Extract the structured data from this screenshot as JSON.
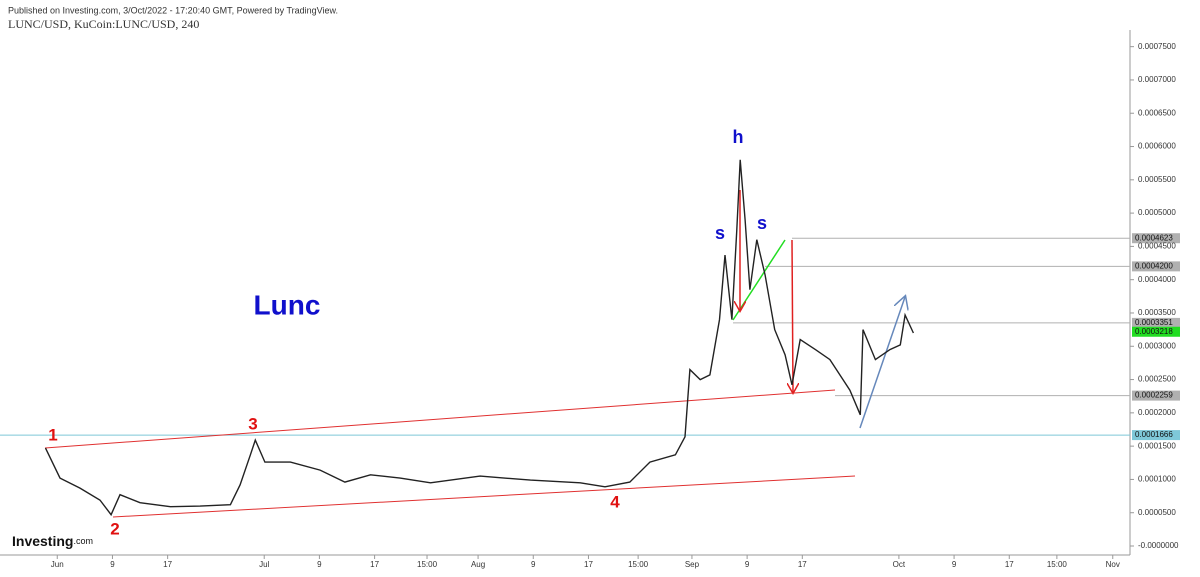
{
  "header": {
    "published": "Published on Investing.com, 3/Oct/2022 - 17:20:40 GMT, Powered by TradingView.",
    "symbol": "LUNC/USD, KuCoin:LUNC/USD, 240",
    "logo": "Investing",
    "logo_suffix": ".com"
  },
  "chart_data": {
    "type": "line",
    "color": "#222222",
    "x": [
      -1.7,
      0.4,
      3.3,
      6.2,
      7.8,
      9.1,
      12,
      16.4,
      20.7,
      25.1,
      26.5,
      28,
      28.7,
      30.1,
      33.8,
      38.1,
      41.7,
      45.4,
      49.7,
      54.1,
      61.3,
      68.6,
      75.8,
      79.4,
      83,
      85.9,
      89.6,
      91,
      91.7,
      93.2,
      94.6,
      96,
      96.8,
      97.8,
      98.5,
      99,
      99.7,
      100.4,
      101.4,
      102.6,
      104,
      105.5,
      106.5,
      107.7,
      109.9,
      112,
      114.9,
      116.4,
      116.8,
      118.6,
      120.7,
      122.2,
      122.9,
      124.1
    ],
    "values": [
      0.000147,
      0.000102,
      8.7e-05,
      6.9e-05,
      4.7e-05,
      7.7e-05,
      6.5e-05,
      5.9e-05,
      6e-05,
      6.2e-05,
      9.2e-05,
      0.000137,
      0.000159,
      0.000126,
      0.000126,
      0.000114,
      9.6e-05,
      0.000107,
      0.000102,
      9.5e-05,
      0.000105,
      9.9e-05,
      9.5e-05,
      8.9e-05,
      9.6e-05,
      0.000126,
      0.000137,
      0.000164,
      0.000265,
      0.00025,
      0.000257,
      0.00034,
      0.000437,
      0.00034,
      0.000475,
      0.00058,
      0.00049,
      0.000385,
      0.00046,
      0.000407,
      0.000325,
      0.000287,
      0.000242,
      0.00031,
      0.000295,
      0.00028,
      0.000234,
      0.000197,
      0.000325,
      0.00028,
      0.000295,
      0.000302,
      0.000347,
      0.00032
    ],
    "xlim": [
      -8.3,
      155.5
    ],
    "ylim": [
      -1.35e-05,
      0.00076
    ],
    "xticks": [
      {
        "value": 0,
        "label": "Jun"
      },
      {
        "value": 8,
        "label": "9"
      },
      {
        "value": 16,
        "label": "17"
      },
      {
        "value": 30,
        "label": "Jul"
      },
      {
        "value": 38,
        "label": "9"
      },
      {
        "value": 46,
        "label": "17"
      },
      {
        "value": 53.6,
        "label": "15:00"
      },
      {
        "value": 61,
        "label": "Aug"
      },
      {
        "value": 69,
        "label": "9"
      },
      {
        "value": 77,
        "label": "17"
      },
      {
        "value": 84.2,
        "label": "15:00"
      },
      {
        "value": 92,
        "label": "Sep"
      },
      {
        "value": 100,
        "label": "9"
      },
      {
        "value": 108,
        "label": "17"
      },
      {
        "value": 122,
        "label": "Oct"
      },
      {
        "value": 130,
        "label": "9"
      },
      {
        "value": 138,
        "label": "17"
      },
      {
        "value": 144.9,
        "label": "15:00"
      },
      {
        "value": 153,
        "label": "Nov"
      }
    ],
    "yticks": [
      {
        "value": 0,
        "label": "-0.0000000"
      },
      {
        "value": 5e-05,
        "label": "0.0000500"
      },
      {
        "value": 0.0001,
        "label": "0.0001000"
      },
      {
        "value": 0.00015,
        "label": "0.0001500"
      },
      {
        "value": 0.0002,
        "label": "0.0002000"
      },
      {
        "value": 0.00025,
        "label": "0.0002500"
      },
      {
        "value": 0.0003,
        "label": "0.0003000"
      },
      {
        "value": 0.00035,
        "label": "0.0003500"
      },
      {
        "value": 0.0004,
        "label": "0.0004000"
      },
      {
        "value": 0.00045,
        "label": "0.0004500"
      },
      {
        "value": 0.0005,
        "label": "0.0005000"
      },
      {
        "value": 0.00055,
        "label": "0.0005500"
      },
      {
        "value": 0.0006,
        "label": "0.0006000"
      },
      {
        "value": 0.00065,
        "label": "0.0006500"
      },
      {
        "value": 0.0007,
        "label": "0.0007000"
      },
      {
        "value": 0.00075,
        "label": "0.0007500"
      }
    ],
    "levels": [
      {
        "value": 0.0004623,
        "label": "0.0004623",
        "color": "#b0b0b0"
      },
      {
        "value": 0.00042,
        "label": "0.0004200",
        "color": "#b0b0b0"
      },
      {
        "value": 0.0003351,
        "label": "0.0003351",
        "color": "#b0b0b0"
      },
      {
        "value": 0.0003218,
        "label": "0.0003218",
        "color": "#22dd22"
      },
      {
        "value": 0.0002259,
        "label": "0.0002259",
        "color": "#b0b0b0"
      },
      {
        "value": 0.0001666,
        "label": "0.0001666",
        "color": "#7ec8d8"
      }
    ],
    "annotations": [
      "Lunc",
      "1",
      "2",
      "3",
      "4",
      "s",
      "h",
      "s"
    ]
  }
}
